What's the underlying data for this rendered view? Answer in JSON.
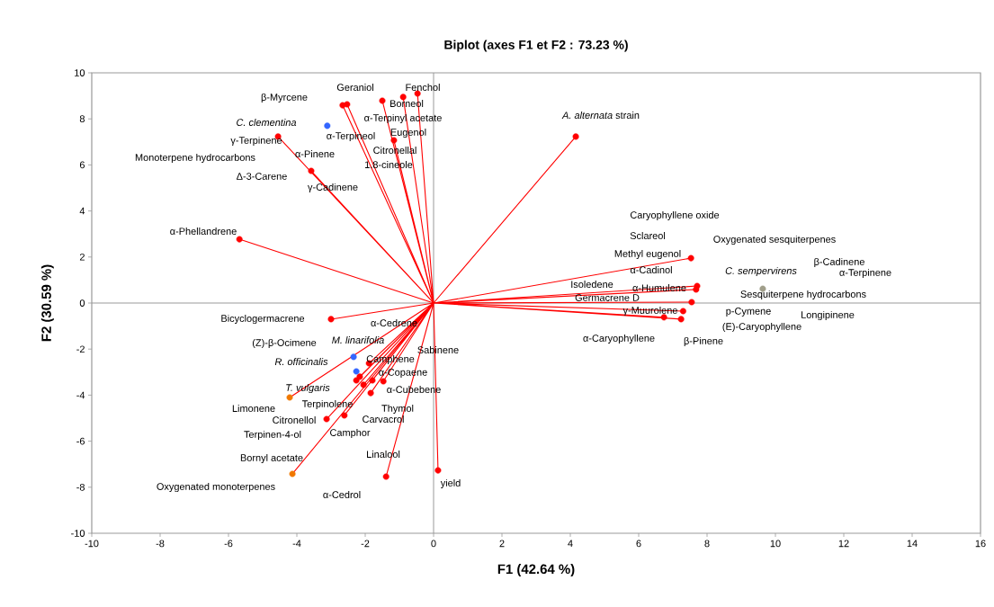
{
  "chart_data": {
    "type": "scatter",
    "title": "Biplot (axes F1 et F2 : 73.23 %)",
    "xlabel": "F1 (42.64 %)",
    "ylabel": "F2 (30.59 %)",
    "xlim": [
      -10,
      16
    ],
    "ylim": [
      -10,
      10
    ],
    "xticks": [
      -10,
      -8,
      -6,
      -4,
      -2,
      0,
      2,
      4,
      6,
      8,
      10,
      12,
      14,
      16
    ],
    "yticks": [
      -10,
      -8,
      -6,
      -4,
      -2,
      0,
      2,
      4,
      6,
      8,
      10
    ],
    "series": [
      {
        "type": "line",
        "color": "#ff0000",
        "marker": "none",
        "x": [
          0,
          -5.68,
          null,
          0,
          -4.55,
          null,
          0,
          -3.58,
          null,
          0,
          -2.66,
          null,
          0,
          -2.53,
          null,
          0,
          -1.5,
          null,
          0,
          -0.89,
          null,
          0,
          -0.47,
          null,
          0,
          -1.16,
          null,
          0,
          4.16,
          null,
          0,
          7.53,
          null,
          0,
          7.71,
          null,
          0,
          7.68,
          null,
          0,
          7.55,
          null,
          0,
          6.74,
          null,
          0,
          7.24,
          null,
          0,
          7.3,
          null,
          0,
          -3.0,
          null,
          0,
          -1.89,
          null,
          0,
          -2.16,
          null,
          0,
          -2.26,
          null,
          0,
          -2.05,
          null,
          0,
          -1.79,
          null,
          0,
          -1.47,
          null,
          0,
          -1.84,
          null,
          0,
          -3.13,
          null,
          0,
          -2.61,
          null,
          0,
          -1.39,
          null,
          0,
          0.13,
          null,
          0,
          -4.21,
          null,
          0,
          -4.13
        ],
        "values": [
          0,
          2.77,
          null,
          0,
          7.23,
          null,
          0,
          5.74,
          null,
          0,
          8.59,
          null,
          0,
          8.63,
          null,
          0,
          8.79,
          null,
          0,
          8.95,
          null,
          0,
          9.1,
          null,
          0,
          7.07,
          null,
          0,
          7.23,
          null,
          0,
          1.95,
          null,
          0,
          0.74,
          null,
          0,
          0.59,
          null,
          0,
          0.04,
          null,
          0,
          -0.62,
          null,
          0,
          -0.7,
          null,
          0,
          -0.35,
          null,
          0,
          -0.7,
          null,
          0,
          -2.62,
          null,
          0,
          -3.2,
          null,
          0,
          -3.36,
          null,
          0,
          -3.55,
          null,
          0,
          -3.36,
          null,
          0,
          -3.4,
          null,
          0,
          -3.91,
          null,
          0,
          -5.04,
          null,
          0,
          -4.88,
          null,
          0,
          -7.54,
          null,
          0,
          -7.27,
          null,
          0,
          -4.1,
          null,
          0,
          -7.42
        ]
      },
      {
        "color": "#ff0000",
        "marker": "circle",
        "x": [
          -5.68,
          -4.55,
          -3.58,
          -2.66,
          -2.53,
          -1.5,
          -0.89,
          -0.47,
          -1.16,
          4.16,
          7.53,
          7.71,
          7.68,
          7.55,
          6.74,
          7.24,
          7.3,
          -3.0,
          -1.89,
          -2.16,
          -2.26,
          -2.05,
          -1.79,
          -1.47,
          -1.84,
          -3.13,
          -2.61,
          -1.39,
          0.13
        ],
        "values": [
          2.77,
          7.23,
          5.74,
          8.59,
          8.63,
          8.79,
          8.95,
          9.1,
          7.07,
          7.23,
          1.95,
          0.74,
          0.59,
          0.04,
          -0.62,
          -0.7,
          -0.35,
          -0.7,
          -2.62,
          -3.2,
          -3.36,
          -3.55,
          -3.36,
          -3.4,
          -3.91,
          -5.04,
          -4.88,
          -7.54,
          -7.27
        ]
      },
      {
        "color": "#f07800",
        "marker": "circle",
        "x": [
          -4.21,
          -4.13
        ],
        "values": [
          -4.1,
          -7.42
        ]
      },
      {
        "color": "#3366ff",
        "marker": "circle",
        "x": [
          -3.11,
          -2.34,
          -2.26
        ],
        "values": [
          7.7,
          -2.34,
          -2.97
        ]
      },
      {
        "color": "#a09e8a",
        "marker": "circle",
        "x": [
          9.63
        ],
        "values": [
          0.62
        ]
      }
    ],
    "annotations": [
      "Geraniol",
      "Fenchol",
      "β-Myrcene",
      "Borneol",
      "α-Terpinyl acetate",
      "*C. clementina*",
      "Eugenol",
      "α-Terpineol",
      "γ-Terpinene",
      "Citronellal",
      "Monoterpene hydrocarbons",
      "α-Pinene",
      "1.8-cineole",
      "Δ-3-Carene",
      "γ-Cadinene",
      "α-Phellandrene",
      "*A. alternata* strain",
      "Caryophyllene oxide",
      "Sclareol",
      "Oxygenated sesquiterpenes",
      "Methyl eugenol",
      "β-Cadinene",
      "α-Cadinol",
      "*C. sempervirens*",
      "α-Terpinene",
      "Isoledene",
      "α-Humulene",
      "Germacrene D",
      "Sesquiterpene hydrocarbons",
      "γ-Muurolene",
      "p-Cymene",
      "Longipinene",
      "(E)-Caryophyllene",
      "α-Caryophyllene",
      "β-Pinene",
      "Bicyclogermacrene",
      "α-Cedrene",
      "*M. linarifolia*",
      "(Z)-β-Ocimene",
      "Sabinene",
      "*R. officinalis*",
      "Camphene",
      "α-Copaene",
      "*T. vulgaris*",
      "α-Cubebene",
      "Limonene",
      "Terpinolene",
      "Thymol",
      "Carvacrol",
      "Citronellol",
      "Terpinen-4-ol",
      "Camphor",
      "Linalool",
      "Bornyl acetate",
      "Oxygenated monoterpenes",
      "yield",
      "α-Cedrol"
    ]
  }
}
